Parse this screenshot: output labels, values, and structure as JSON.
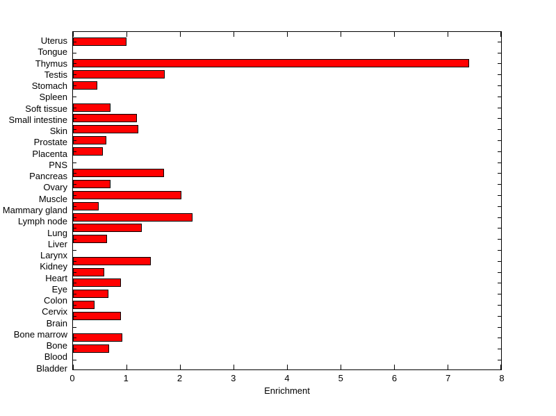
{
  "figure": {
    "background": "#ffffff",
    "colors": {
      "bar_fill": "#ff0000",
      "bar_border": "#000000",
      "axis": "#000000",
      "text": "#000000"
    }
  },
  "chart_data": {
    "type": "bar",
    "orientation": "horizontal",
    "title": "",
    "xlabel": "Enrichment",
    "ylabel": "",
    "xlim": [
      0,
      8
    ],
    "x_ticks": [
      0,
      1,
      2,
      3,
      4,
      5,
      6,
      7,
      8
    ],
    "grid": false,
    "legend": "none",
    "bar_color": "#ff0000",
    "bar_border_color": "#000000",
    "categories": [
      "Uterus",
      "Tongue",
      "Thymus",
      "Testis",
      "Stomach",
      "Spleen",
      "Soft tissue",
      "Small intestine",
      "Skin",
      "Prostate",
      "Placenta",
      "PNS",
      "Pancreas",
      "Ovary",
      "Muscle",
      "Mammary gland",
      "Lymph node",
      "Lung",
      "Liver",
      "Larynx",
      "Kidney",
      "Heart",
      "Eye",
      "Colon",
      "Cervix",
      "Brain",
      "Bone marrow",
      "Bone",
      "Blood",
      "Bladder"
    ],
    "values": [
      1.0,
      0,
      7.4,
      1.72,
      0.46,
      0,
      0.7,
      1.2,
      1.22,
      0.62,
      0.56,
      0,
      1.7,
      0.7,
      2.02,
      0.48,
      2.24,
      1.28,
      0.63,
      0,
      1.45,
      0.58,
      0.9,
      0.66,
      0.4,
      0.9,
      0,
      0.92,
      0.68,
      0
    ]
  }
}
